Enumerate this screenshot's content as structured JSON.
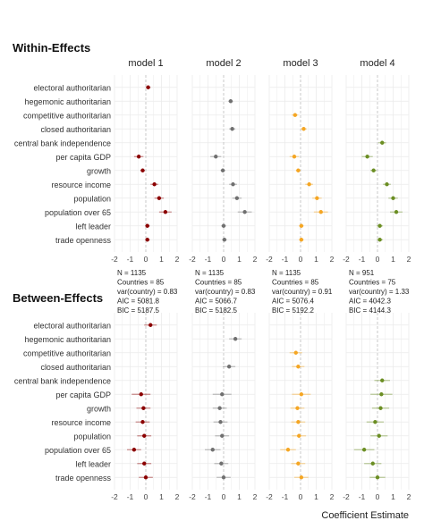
{
  "chart_data": {
    "type": "scatter",
    "subtype": "coefficient-plot (point estimates with confidence intervals)",
    "models": [
      "model 1",
      "model 2",
      "model 3",
      "model 4"
    ],
    "model_colors": [
      "#8b0000",
      "#707070",
      "#f5a623",
      "#6b8e23"
    ],
    "variables": [
      "electoral authoritarian",
      "hegemonic authoritarian",
      "competitive authoritarian",
      "closed authoritarian",
      "central bank independence",
      "per capita GDP",
      "growth",
      "resource income",
      "population",
      "population over 65",
      "left leader",
      "trade openness"
    ],
    "xlim": [
      -2,
      2
    ],
    "xticks": [
      -2,
      -1,
      0,
      1,
      2
    ],
    "xlabel": "Coefficient Estimate",
    "grid": true,
    "zero_line": "dashed",
    "panels": [
      {
        "title": "Within-Effects",
        "series": [
          {
            "name": "model 1",
            "estimates": [
              0.15,
              null,
              null,
              null,
              null,
              -0.45,
              -0.2,
              0.55,
              0.85,
              1.25,
              0.1,
              0.1
            ],
            "lower": [
              0.0,
              null,
              null,
              null,
              null,
              -0.75,
              -0.35,
              0.3,
              0.55,
              0.85,
              -0.05,
              -0.05
            ],
            "upper": [
              0.3,
              null,
              null,
              null,
              null,
              -0.15,
              -0.05,
              0.8,
              1.15,
              1.65,
              0.25,
              0.25
            ]
          },
          {
            "name": "model 2",
            "estimates": [
              null,
              0.45,
              null,
              0.55,
              null,
              -0.5,
              -0.05,
              0.6,
              0.85,
              1.35,
              0.0,
              0.05
            ],
            "lower": [
              null,
              0.3,
              null,
              0.35,
              null,
              -0.85,
              -0.2,
              0.35,
              0.55,
              0.9,
              -0.15,
              -0.1
            ],
            "upper": [
              null,
              0.6,
              null,
              0.75,
              null,
              -0.15,
              0.1,
              0.85,
              1.15,
              1.8,
              0.15,
              0.2
            ]
          },
          {
            "name": "model 3",
            "estimates": [
              null,
              null,
              -0.35,
              0.2,
              null,
              -0.4,
              -0.15,
              0.55,
              1.05,
              1.3,
              0.05,
              0.05
            ],
            "lower": [
              null,
              null,
              -0.55,
              0.0,
              null,
              -0.7,
              -0.3,
              0.3,
              0.75,
              0.85,
              -0.1,
              -0.1
            ],
            "upper": [
              null,
              null,
              -0.15,
              0.4,
              null,
              -0.1,
              0.0,
              0.8,
              1.35,
              1.75,
              0.2,
              0.2
            ]
          },
          {
            "name": "model 4",
            "estimates": [
              null,
              null,
              null,
              null,
              0.3,
              -0.65,
              -0.25,
              0.6,
              1.0,
              1.2,
              0.15,
              0.15
            ],
            "lower": [
              null,
              null,
              null,
              null,
              0.05,
              -1.0,
              -0.45,
              0.35,
              0.7,
              0.8,
              -0.05,
              -0.05
            ],
            "upper": [
              null,
              null,
              null,
              null,
              0.55,
              -0.3,
              -0.05,
              0.85,
              1.3,
              1.6,
              0.35,
              0.35
            ]
          }
        ],
        "stats": [
          [
            "N = 1135",
            "Countries = 85",
            "var(country) = 0.83",
            "AIC = 5081.8",
            "BIC = 5187.5"
          ],
          [
            "N = 1135",
            "Countries = 85",
            "var(country) = 0.83",
            "AIC = 5066.7",
            "BIC = 5182.5"
          ],
          [
            "N = 1135",
            "Countries = 85",
            "var(country) = 0.91",
            "AIC = 5076.4",
            "BIC = 5192.2"
          ],
          [
            "N = 951",
            "Countries = 75",
            "var(country) = 1.33",
            "AIC = 4042.3",
            "BIC = 4144.3"
          ]
        ]
      },
      {
        "title": "Between-Effects",
        "series": [
          {
            "name": "model 1",
            "estimates": [
              0.3,
              null,
              null,
              null,
              null,
              -0.3,
              -0.15,
              -0.2,
              -0.1,
              -0.75,
              -0.1,
              0.0
            ],
            "lower": [
              -0.1,
              null,
              null,
              null,
              null,
              -0.9,
              -0.6,
              -0.65,
              -0.55,
              -1.2,
              -0.55,
              -0.45
            ],
            "upper": [
              0.7,
              null,
              null,
              null,
              null,
              0.3,
              0.3,
              0.25,
              0.35,
              -0.3,
              0.35,
              0.45
            ]
          },
          {
            "name": "model 2",
            "estimates": [
              null,
              0.75,
              null,
              0.35,
              null,
              -0.1,
              -0.25,
              -0.2,
              -0.1,
              -0.7,
              -0.15,
              0.0
            ],
            "lower": [
              null,
              0.35,
              null,
              -0.05,
              null,
              -0.7,
              -0.7,
              -0.65,
              -0.55,
              -1.2,
              -0.6,
              -0.45
            ],
            "upper": [
              null,
              1.15,
              null,
              0.75,
              null,
              0.5,
              0.2,
              0.25,
              0.35,
              -0.2,
              0.3,
              0.45
            ]
          },
          {
            "name": "model 3",
            "estimates": [
              null,
              null,
              -0.3,
              -0.15,
              null,
              0.05,
              -0.2,
              -0.15,
              -0.1,
              -0.8,
              -0.15,
              0.05
            ],
            "lower": [
              null,
              null,
              -0.7,
              -0.55,
              null,
              -0.55,
              -0.65,
              -0.6,
              -0.55,
              -1.3,
              -0.6,
              -0.4
            ],
            "upper": [
              null,
              null,
              0.1,
              0.25,
              null,
              0.65,
              0.25,
              0.3,
              0.35,
              -0.3,
              0.3,
              0.5
            ]
          },
          {
            "name": "model 4",
            "estimates": [
              null,
              null,
              null,
              null,
              0.3,
              0.25,
              0.2,
              -0.15,
              0.1,
              -0.85,
              -0.3,
              0.0
            ],
            "lower": [
              null,
              null,
              null,
              null,
              -0.2,
              -0.45,
              -0.35,
              -0.7,
              -0.45,
              -1.5,
              -0.85,
              -0.5
            ],
            "upper": [
              null,
              null,
              null,
              null,
              0.8,
              0.95,
              0.75,
              0.4,
              0.65,
              -0.2,
              0.25,
              0.5
            ]
          }
        ],
        "stats": null
      }
    ]
  }
}
